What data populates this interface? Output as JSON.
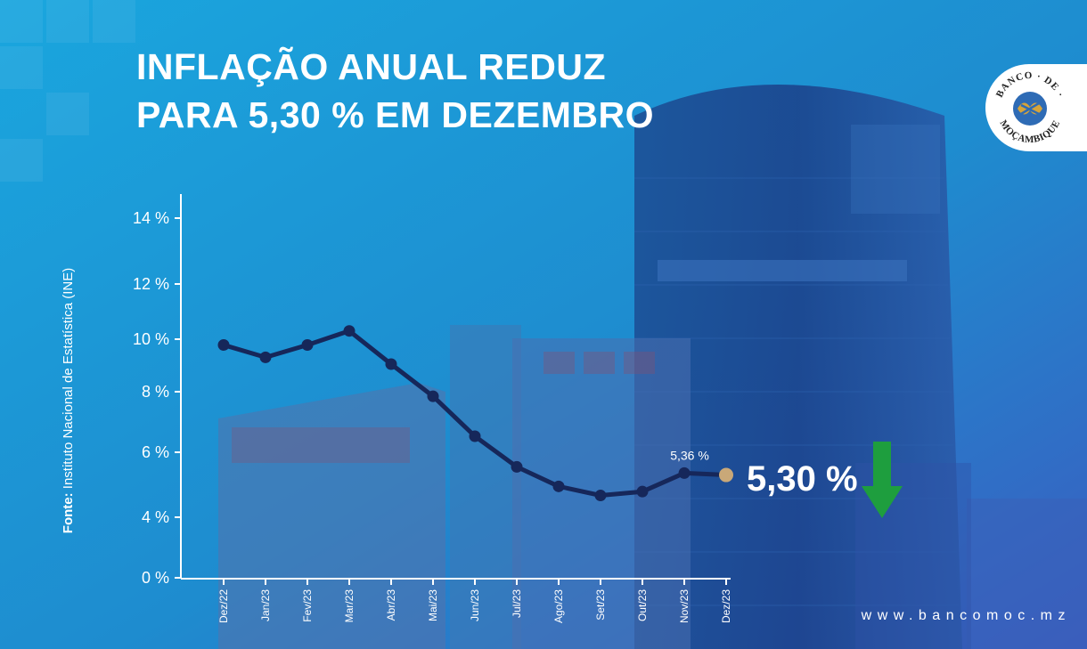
{
  "header": {
    "title_line1": "INFLAÇÃO ANUAL REDUZ",
    "title_line2": "PARA 5,30 % EM DEZEMBRO"
  },
  "logo": {
    "text_top": "BANCO",
    "text_mid": "DE",
    "text_bottom": "MOÇAMBIQUE"
  },
  "source": {
    "label": "Fonte:",
    "text": "Instituto Nacional de Estatística (INE)"
  },
  "website": "www.bancomoc.mz",
  "highlight": {
    "value": "5,30 %",
    "arrow": "arrow-down-icon",
    "arrow_color": "#1e9e3e"
  },
  "colors": {
    "line": "#16275a",
    "last_point": "#c9a878",
    "axis": "#ffffff"
  },
  "chart_data": {
    "type": "line",
    "title": "INFLAÇÃO ANUAL REDUZ PARA 5,30 % EM DEZEMBRO",
    "categories": [
      "Dez/22",
      "Jan/23",
      "Fev/23",
      "Mar/23",
      "Abr/23",
      "Mai/23",
      "Jun/23",
      "Jul/23",
      "Ago/23",
      "Set/23",
      "Out/23",
      "Nov/23",
      "Dez/23"
    ],
    "series": [
      {
        "values": [
          9.78,
          9.31,
          9.78,
          10.3,
          9.05,
          7.85,
          6.53,
          5.55,
          4.95,
          4.67,
          4.79,
          5.36,
          5.3
        ]
      }
    ],
    "y_ticks": [
      {
        "value": 0,
        "label": "0 %"
      },
      {
        "value": 4,
        "label": "4 %"
      },
      {
        "value": 6,
        "label": "6 %"
      },
      {
        "value": 8,
        "label": "8 %"
      },
      {
        "value": 10,
        "label": "10 %"
      },
      {
        "value": 12,
        "label": "12 %"
      },
      {
        "value": 14,
        "label": "14 %"
      }
    ],
    "data_labels": [
      {
        "index": 11,
        "text": "5,36 %"
      }
    ],
    "ylim": [
      0,
      14
    ],
    "xlabel": "",
    "ylabel": "",
    "grid": false
  }
}
